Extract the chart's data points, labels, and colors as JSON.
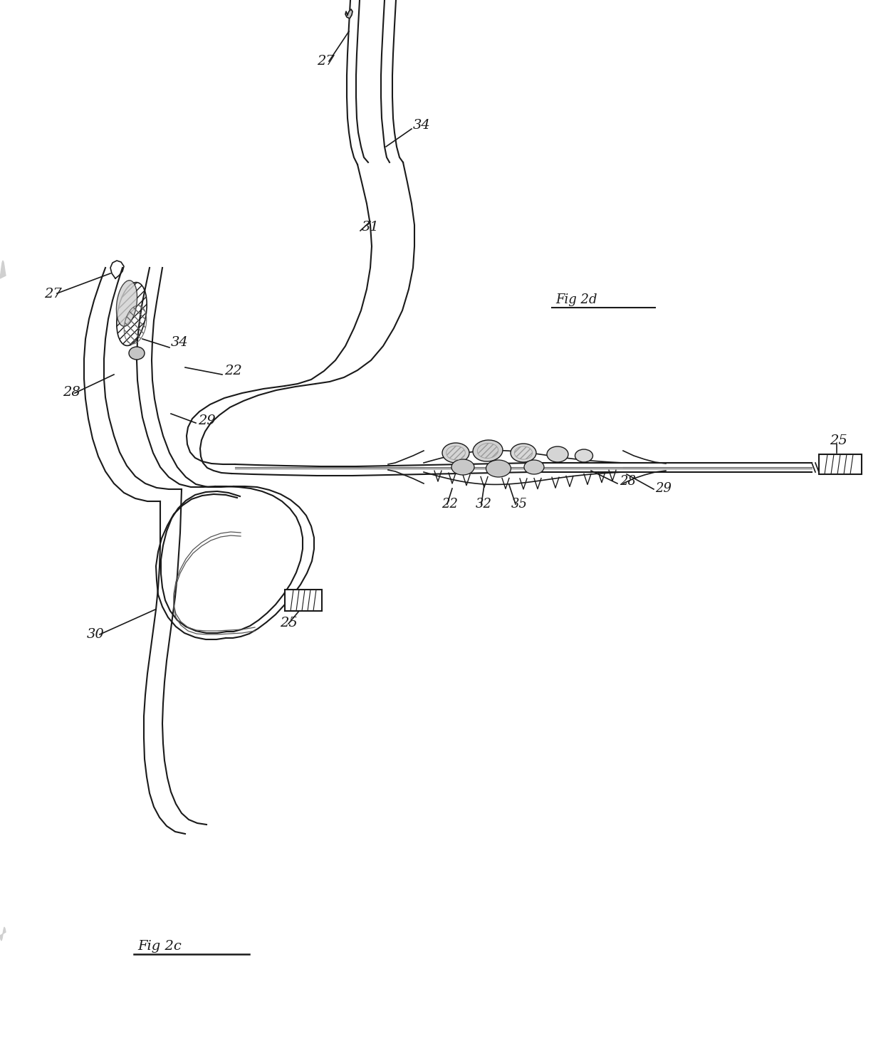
{
  "background_color": "#ffffff",
  "line_color": "#1a1a1a",
  "fig2c_label": "Fig 2c",
  "fig2d_label": "Fig 2d",
  "labels": {
    "27_top": "27",
    "34_top": "34",
    "31": "31",
    "27_left": "27",
    "34_left": "34",
    "22_left": "22",
    "28_left": "28",
    "29_left": "29",
    "30": "30",
    "22_right": "22",
    "32": "32",
    "35": "35",
    "28_right": "28",
    "29_right": "29",
    "25_left": "25",
    "25_right": "25"
  }
}
